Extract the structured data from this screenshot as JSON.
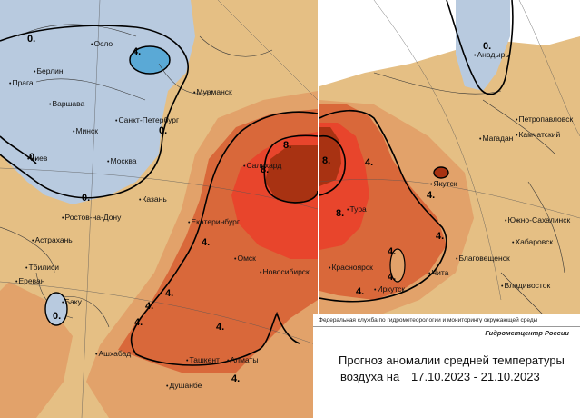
{
  "left_map": {
    "cities": [
      {
        "id": "oslo",
        "label": "Осло"
      },
      {
        "id": "berlin",
        "label": "Берлин"
      },
      {
        "id": "praga",
        "label": "Прага"
      },
      {
        "id": "varshava",
        "label": "Варшава"
      },
      {
        "id": "murmansk",
        "label": "Мурманск"
      },
      {
        "id": "spb",
        "label": "Санкт-Петербург"
      },
      {
        "id": "minsk",
        "label": "Минск"
      },
      {
        "id": "kiev",
        "label": "Киев"
      },
      {
        "id": "moskva",
        "label": "Москва"
      },
      {
        "id": "kazan",
        "label": "Казань"
      },
      {
        "id": "rostov",
        "label": "Ростов-на-Дону"
      },
      {
        "id": "ekb",
        "label": "Екатеринбург"
      },
      {
        "id": "astrakhan",
        "label": "Астрахань"
      },
      {
        "id": "tbilisi",
        "label": "Тбилиси"
      },
      {
        "id": "erevan",
        "label": "Ереван"
      },
      {
        "id": "baku",
        "label": "Баку"
      },
      {
        "id": "omsk",
        "label": "Омск"
      },
      {
        "id": "novosib",
        "label": "Новосибирск"
      },
      {
        "id": "ashgabad",
        "label": "Ашхабад"
      },
      {
        "id": "tashkent",
        "label": "Ташкент"
      },
      {
        "id": "almaty",
        "label": "Алматы"
      },
      {
        "id": "dushanbe",
        "label": "Душанбе"
      },
      {
        "id": "salekhard",
        "label": "Салехард"
      }
    ],
    "contours": [
      "0.",
      "4.",
      "0.",
      "0.",
      "0.",
      "8.",
      "8.",
      "4.",
      "4.",
      "4.",
      "4.",
      "4.",
      "4.",
      "0."
    ]
  },
  "right_map": {
    "cities": [
      {
        "id": "anadyr",
        "label": "Анадырь"
      },
      {
        "id": "petropavlovsk",
        "label": "Петропавловск"
      },
      {
        "id": "kamchatsky",
        "label": "Камчатский"
      },
      {
        "id": "magadan",
        "label": "Магадан"
      },
      {
        "id": "yakutsk",
        "label": "Якутск"
      },
      {
        "id": "yuzhno",
        "label": "Южно-Сахалинск"
      },
      {
        "id": "khabarovsk",
        "label": "Хабаровск"
      },
      {
        "id": "tura",
        "label": "Тура"
      },
      {
        "id": "krasnoyarsk",
        "label": "Красноярск"
      },
      {
        "id": "chita",
        "label": "Чита"
      },
      {
        "id": "blagoveshchensk",
        "label": "Благовещенск"
      },
      {
        "id": "irkutsk",
        "label": "Иркутск"
      },
      {
        "id": "vladivostok",
        "label": "Владивосток"
      }
    ],
    "contours": [
      "0.",
      "4.",
      "8.",
      "8.",
      "4.",
      "4.",
      "4.",
      "4.",
      "4."
    ]
  },
  "info": {
    "agency": "Федеральная служба по гидрометеорологии и мониторингу окружающей среды",
    "center": "Гидрометцентр России",
    "title": "Прогноз аномалии средней температуры",
    "subtitle": "воздуха на",
    "dates": "17.10.2023 - 21.10.2023"
  },
  "colors": {
    "cold_strong": "#5aa9d6",
    "cold": "#b8cadf",
    "neutral": "#e5bf84",
    "warm": "#e2a26a",
    "warmer": "#d9683a",
    "hot": "#e8452c",
    "hottest": "#a83212"
  }
}
